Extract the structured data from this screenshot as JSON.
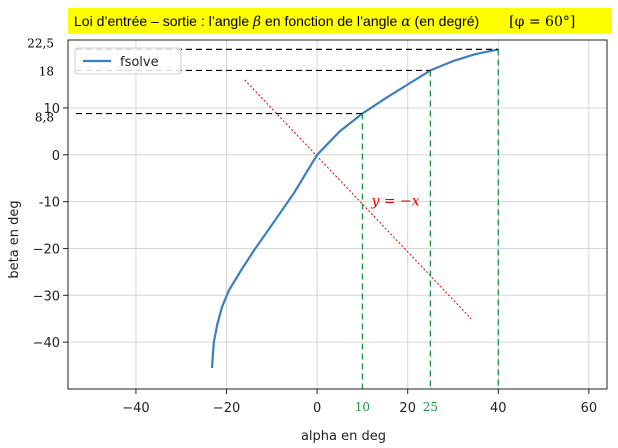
{
  "banner": {
    "before_beta": "Loi d’entrée – sortie : l’angle ",
    "beta_symbol": "β",
    "middle": "  en fonction de l’angle ",
    "alpha_symbol": "α",
    "after_alpha": "  (en degré)",
    "phi_note": "[φ = 60°]"
  },
  "chart_data": {
    "type": "line",
    "xlabel": "alpha en deg",
    "ylabel": "beta  en deg",
    "xlim": [
      -55,
      64
    ],
    "ylim": [
      -50,
      24.5
    ],
    "grid": true,
    "legend_position": "top-left",
    "x_ticks": [
      {
        "value": -40,
        "label": "−40"
      },
      {
        "value": -20,
        "label": "−20"
      },
      {
        "value": 0,
        "label": "0"
      },
      {
        "value": 20,
        "label": "20"
      },
      {
        "value": 40,
        "label": "40"
      },
      {
        "value": 60,
        "label": "60"
      }
    ],
    "y_ticks": [
      {
        "value": 10,
        "label": "10"
      },
      {
        "value": 0,
        "label": "0"
      },
      {
        "value": -10,
        "label": "-10"
      },
      {
        "value": -20,
        "label": "−20"
      },
      {
        "value": -30,
        "label": "−30"
      },
      {
        "value": -40,
        "label": "−40"
      }
    ],
    "series": [
      {
        "name": "fsolve",
        "color": "#3a7fbf",
        "points": [
          [
            -23.2,
            -45.5
          ],
          [
            -22.8,
            -40
          ],
          [
            -22,
            -36
          ],
          [
            -21,
            -32.5
          ],
          [
            -19.5,
            -29
          ],
          [
            -17,
            -25
          ],
          [
            -14,
            -20.5
          ],
          [
            -10,
            -15
          ],
          [
            -5,
            -8
          ],
          [
            0,
            0
          ],
          [
            5,
            5
          ],
          [
            10,
            8.8
          ],
          [
            15,
            12
          ],
          [
            20,
            15
          ],
          [
            25,
            18
          ],
          [
            30,
            20
          ],
          [
            35,
            21.5
          ],
          [
            40,
            22.5
          ]
        ]
      }
    ],
    "reference_line": {
      "label": "y = −x",
      "color": "#dd0000",
      "from": [
        -16,
        16
      ],
      "to": [
        34,
        -35
      ]
    },
    "y_annotations": [
      {
        "value": 22.5,
        "label": "22,5"
      },
      {
        "value": 18,
        "label": "18"
      },
      {
        "value": 8.8,
        "label": "8,8"
      }
    ],
    "x_annotations": [
      {
        "value": 10,
        "label": "10"
      },
      {
        "value": 25,
        "label": "25"
      },
      {
        "value": 40,
        "label": ""
      }
    ],
    "annotation_color_h": "#000000",
    "annotation_color_v": "#1a9641"
  }
}
